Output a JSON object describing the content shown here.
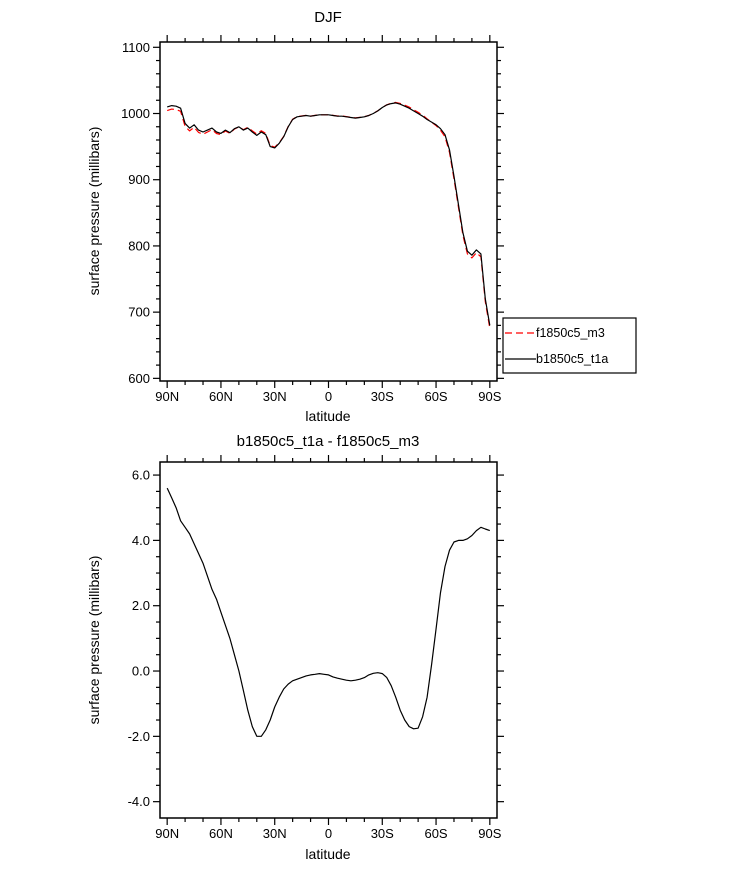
{
  "figure": {
    "background": "#ffffff",
    "axis_color": "#000000",
    "series_colors": {
      "f1850c5_m3": "#ff0000",
      "b1850c5_t1a": "#000000"
    }
  },
  "chart_data": [
    {
      "type": "line",
      "title": "DJF",
      "xlabel": "latitude",
      "ylabel": "surface pressure (millibars)",
      "xlim": [
        94,
        -94
      ],
      "ylim": [
        596,
        1108
      ],
      "x_minor_step": 10,
      "y_minor_step": 20,
      "xticks": [
        {
          "v": 90,
          "l": "90N"
        },
        {
          "v": 60,
          "l": "60N"
        },
        {
          "v": 30,
          "l": "30N"
        },
        {
          "v": 0,
          "l": "0"
        },
        {
          "v": -30,
          "l": "30S"
        },
        {
          "v": -60,
          "l": "60S"
        },
        {
          "v": -90,
          "l": "90S"
        }
      ],
      "yticks": [
        {
          "v": 600,
          "l": "600"
        },
        {
          "v": 700,
          "l": "700"
        },
        {
          "v": 800,
          "l": "800"
        },
        {
          "v": 900,
          "l": "900"
        },
        {
          "v": 1000,
          "l": "1000"
        },
        {
          "v": 1100,
          "l": "1100"
        }
      ],
      "x": [
        90,
        87.5,
        85,
        82.5,
        80,
        77.5,
        75,
        72.5,
        70,
        67.5,
        65,
        62.5,
        60,
        57.5,
        55,
        52.5,
        50,
        47.5,
        45,
        42.5,
        40,
        37.5,
        35,
        32.5,
        30,
        27.5,
        25,
        22.5,
        20,
        17.5,
        15,
        12.5,
        10,
        7.5,
        5,
        2.5,
        0,
        -2.5,
        -5,
        -7.5,
        -10,
        -12.5,
        -15,
        -17.5,
        -20,
        -22.5,
        -25,
        -27.5,
        -30,
        -32.5,
        -35,
        -37.5,
        -40,
        -42.5,
        -45,
        -47.5,
        -50,
        -52.5,
        -55,
        -57.5,
        -60,
        -62.5,
        -65,
        -67.5,
        -70,
        -72.5,
        -75,
        -77.5,
        -80,
        -82.5,
        -85,
        -87.5,
        -90
      ],
      "series": [
        {
          "name": "f1850c5_m3",
          "color": "#ff0000",
          "dash": [
            7,
            4
          ],
          "width": 1.2,
          "values": [
            1004.4,
            1006.7,
            1006.0,
            1003.4,
            980.6,
            973.8,
            979.1,
            971.4,
            968.7,
            972.1,
            975.5,
            969.8,
            968.2,
            973.6,
            970.0,
            976.5,
            980.0,
            975.6,
            979.2,
            973.7,
            969.0,
            974.0,
            969.8,
            951.5,
            949.1,
            955.8,
            965.6,
            980.4,
            991.3,
            995.3,
            996.2,
            997.2,
            996.1,
            997.1,
            998.1,
            998.1,
            998.1,
            997.2,
            996.2,
            996.3,
            995.3,
            994.3,
            993.3,
            994.3,
            995.2,
            997.1,
            1000.1,
            1004.1,
            1009.1,
            1013.2,
            1015.5,
            1016.8,
            1015.2,
            1012.5,
            1009.7,
            1005.8,
            1001.8,
            997.4,
            991.8,
            986.8,
            981.7,
            974.6,
            964.8,
            941.3,
            901.1,
            858.0,
            816.0,
            788.0,
            781.9,
            789.7,
            783.6,
            715.7,
            675.7
          ]
        },
        {
          "name": "b1850c5_t1a",
          "color": "#000000",
          "dash": [],
          "width": 1.2,
          "values": [
            1010,
            1012,
            1011,
            1008,
            985,
            978,
            983,
            975,
            972,
            975,
            978,
            972,
            970,
            975,
            971,
            977,
            980,
            975,
            978,
            972,
            967,
            972,
            968,
            950,
            948,
            955,
            965,
            980,
            991,
            995,
            996,
            997,
            996,
            997,
            998,
            998,
            998,
            997,
            996,
            996,
            995,
            994,
            993,
            994,
            995,
            997,
            1000,
            1004,
            1009,
            1013,
            1015,
            1016,
            1014,
            1011,
            1008,
            1004,
            1000,
            996,
            991,
            987,
            983,
            977,
            968,
            945,
            905,
            862,
            820,
            792,
            786,
            794,
            788,
            720,
            680
          ]
        }
      ],
      "legend": {
        "visible": true,
        "position": "right-outside"
      }
    },
    {
      "type": "line",
      "title": "b1850c5_t1a - f1850c5_m3",
      "xlabel": "latitude",
      "ylabel": "surface pressure (millibars)",
      "xlim": [
        94,
        -94
      ],
      "ylim": [
        -4.5,
        6.4
      ],
      "x_minor_step": 10,
      "y_minor_step": 0.5,
      "xticks": [
        {
          "v": 90,
          "l": "90N"
        },
        {
          "v": 60,
          "l": "60N"
        },
        {
          "v": 30,
          "l": "30N"
        },
        {
          "v": 0,
          "l": "0"
        },
        {
          "v": -30,
          "l": "30S"
        },
        {
          "v": -60,
          "l": "60S"
        },
        {
          "v": -90,
          "l": "90S"
        }
      ],
      "yticks": [
        {
          "v": -4,
          "l": "-4.0"
        },
        {
          "v": -2,
          "l": "-2.0"
        },
        {
          "v": 0,
          "l": "0.0"
        },
        {
          "v": 2,
          "l": "2.0"
        },
        {
          "v": 4,
          "l": "4.0"
        },
        {
          "v": 6,
          "l": "6.0"
        }
      ],
      "x": [
        90,
        87.5,
        85,
        82.5,
        80,
        77.5,
        75,
        72.5,
        70,
        67.5,
        65,
        62.5,
        60,
        57.5,
        55,
        52.5,
        50,
        47.5,
        45,
        42.5,
        40,
        37.5,
        35,
        32.5,
        30,
        27.5,
        25,
        22.5,
        20,
        17.5,
        15,
        12.5,
        10,
        7.5,
        5,
        2.5,
        0,
        -2.5,
        -5,
        -7.5,
        -10,
        -12.5,
        -15,
        -17.5,
        -20,
        -22.5,
        -25,
        -27.5,
        -30,
        -32.5,
        -35,
        -37.5,
        -40,
        -42.5,
        -45,
        -47.5,
        -50,
        -52.5,
        -55,
        -57.5,
        -60,
        -62.5,
        -65,
        -67.5,
        -70,
        -72.5,
        -75,
        -77.5,
        -80,
        -82.5,
        -85,
        -87.5,
        -90
      ],
      "series": [
        {
          "name": "b1850c5_t1a - f1850c5_m3",
          "color": "#000000",
          "dash": [],
          "width": 1.2,
          "values": [
            5.6,
            5.3,
            5.0,
            4.6,
            4.4,
            4.2,
            3.9,
            3.6,
            3.3,
            2.9,
            2.5,
            2.2,
            1.8,
            1.4,
            1.0,
            0.5,
            0.0,
            -0.6,
            -1.2,
            -1.7,
            -2.0,
            -2.0,
            -1.8,
            -1.5,
            -1.1,
            -0.8,
            -0.55,
            -0.4,
            -0.3,
            -0.25,
            -0.2,
            -0.15,
            -0.12,
            -0.1,
            -0.08,
            -0.1,
            -0.12,
            -0.18,
            -0.22,
            -0.25,
            -0.28,
            -0.3,
            -0.28,
            -0.25,
            -0.2,
            -0.12,
            -0.07,
            -0.05,
            -0.08,
            -0.2,
            -0.45,
            -0.8,
            -1.2,
            -1.5,
            -1.7,
            -1.77,
            -1.75,
            -1.4,
            -0.8,
            0.2,
            1.3,
            2.4,
            3.2,
            3.7,
            3.95,
            4.0,
            4.0,
            4.05,
            4.15,
            4.3,
            4.4,
            4.35,
            4.3
          ]
        }
      ],
      "legend": {
        "visible": false
      }
    }
  ]
}
